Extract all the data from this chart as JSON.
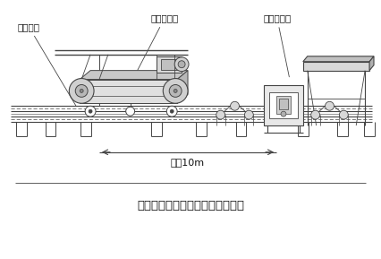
{
  "title": "与带式除鐵器配套使用安装示意图",
  "label_wuci": "无磁托辊",
  "label_daishi": "带式除鐵器",
  "label_jinshu": "金属探测仳",
  "label_distance": "大于10m",
  "line_color": "#444444",
  "text_color": "#111111",
  "bg_color": "#ffffff"
}
